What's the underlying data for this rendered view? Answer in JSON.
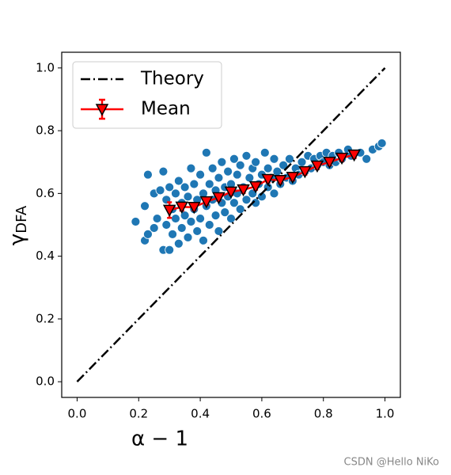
{
  "chart_data": {
    "type": "scatter",
    "xlabel": "α − 1",
    "ylabel": "γ",
    "ylabel_sub": "DFA",
    "watermark": "CSDN @Hello NiKo",
    "xlim": [
      -0.05,
      1.05
    ],
    "ylim": [
      -0.05,
      1.05
    ],
    "xticks": [
      {
        "value": 0,
        "label": "0.0"
      },
      0.2,
      0.4,
      0.6,
      0.8,
      {
        "value": 1,
        "label": "1.0"
      }
    ],
    "yticks": [
      {
        "value": 0,
        "label": "0.0"
      },
      0.2,
      0.4,
      0.6,
      0.8,
      {
        "value": 1,
        "label": "1.0"
      }
    ],
    "legend": "upper left",
    "points": {
      "color": "#1f77b4",
      "x": [
        0.19,
        0.22,
        0.22,
        0.23,
        0.23,
        0.25,
        0.25,
        0.26,
        0.27,
        0.28,
        0.28,
        0.29,
        0.29,
        0.3,
        0.3,
        0.31,
        0.31,
        0.32,
        0.32,
        0.33,
        0.33,
        0.34,
        0.34,
        0.35,
        0.35,
        0.36,
        0.36,
        0.37,
        0.37,
        0.38,
        0.38,
        0.39,
        0.39,
        0.4,
        0.4,
        0.41,
        0.41,
        0.42,
        0.42,
        0.43,
        0.43,
        0.44,
        0.44,
        0.45,
        0.45,
        0.46,
        0.46,
        0.47,
        0.47,
        0.48,
        0.48,
        0.49,
        0.49,
        0.5,
        0.5,
        0.51,
        0.51,
        0.52,
        0.52,
        0.53,
        0.53,
        0.54,
        0.55,
        0.55,
        0.56,
        0.57,
        0.57,
        0.58,
        0.58,
        0.59,
        0.6,
        0.6,
        0.61,
        0.62,
        0.62,
        0.63,
        0.64,
        0.64,
        0.65,
        0.66,
        0.67,
        0.68,
        0.69,
        0.7,
        0.71,
        0.72,
        0.73,
        0.74,
        0.75,
        0.76,
        0.77,
        0.78,
        0.79,
        0.8,
        0.81,
        0.82,
        0.83,
        0.84,
        0.85,
        0.86,
        0.88,
        0.89,
        0.92,
        0.94,
        0.96,
        0.98,
        0.99
      ],
      "y": [
        0.51,
        0.56,
        0.45,
        0.66,
        0.47,
        0.6,
        0.49,
        0.52,
        0.61,
        0.67,
        0.42,
        0.58,
        0.5,
        0.42,
        0.62,
        0.55,
        0.47,
        0.6,
        0.52,
        0.44,
        0.64,
        0.57,
        0.49,
        0.53,
        0.62,
        0.46,
        0.59,
        0.68,
        0.51,
        0.55,
        0.63,
        0.48,
        0.58,
        0.52,
        0.66,
        0.6,
        0.45,
        0.73,
        0.56,
        0.5,
        0.63,
        0.58,
        0.68,
        0.53,
        0.61,
        0.48,
        0.65,
        0.57,
        0.7,
        0.54,
        0.62,
        0.59,
        0.67,
        0.52,
        0.63,
        0.71,
        0.57,
        0.6,
        0.66,
        0.55,
        0.69,
        0.62,
        0.58,
        0.72,
        0.65,
        0.6,
        0.68,
        0.57,
        0.7,
        0.63,
        0.66,
        0.59,
        0.73,
        0.62,
        0.68,
        0.65,
        0.71,
        0.6,
        0.67,
        0.63,
        0.69,
        0.65,
        0.71,
        0.64,
        0.68,
        0.66,
        0.7,
        0.67,
        0.72,
        0.68,
        0.71,
        0.69,
        0.72,
        0.7,
        0.73,
        0.69,
        0.72,
        0.7,
        0.73,
        0.71,
        0.74,
        0.72,
        0.73,
        0.71,
        0.74,
        0.75,
        0.76
      ]
    },
    "series": [
      {
        "name": "Theory",
        "kind": "line",
        "color": "#000000",
        "x": [
          0,
          1
        ],
        "y": [
          0,
          1
        ]
      },
      {
        "name": "Mean",
        "kind": "errorbar",
        "color": "#ff0000",
        "x": [
          0.3,
          0.34,
          0.38,
          0.42,
          0.46,
          0.5,
          0.54,
          0.58,
          0.62,
          0.66,
          0.7,
          0.74,
          0.78,
          0.82,
          0.86,
          0.9
        ],
        "y": [
          0.547,
          0.557,
          0.556,
          0.574,
          0.587,
          0.605,
          0.612,
          0.622,
          0.645,
          0.642,
          0.652,
          0.67,
          0.688,
          0.7,
          0.713,
          0.723
        ],
        "errors": [
          0.025,
          0.012,
          0.01,
          0.01,
          0.01,
          0.01,
          0.01,
          0.01,
          0.01,
          0.01,
          0.01,
          0.01,
          0.01,
          0.01,
          0.01,
          0.01
        ]
      }
    ]
  }
}
